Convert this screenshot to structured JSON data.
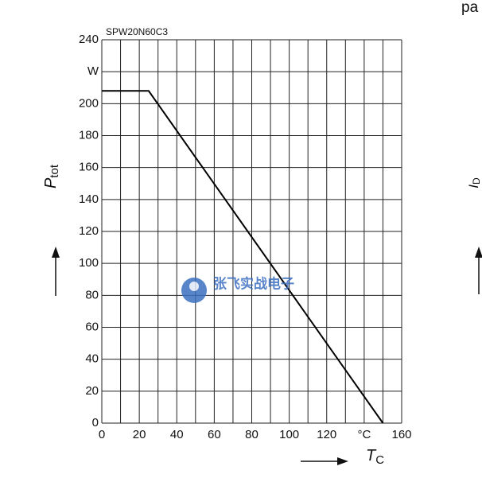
{
  "chart_data": {
    "type": "line",
    "title": "SPW20N60C3",
    "x_label": {
      "symbol": "T",
      "subscript": "C"
    },
    "y_label": {
      "symbol": "P",
      "subscript": "tot"
    },
    "x": [
      0,
      25,
      150
    ],
    "series": [
      {
        "color": "#000000",
        "values": [
          208,
          208,
          0
        ]
      }
    ],
    "xlim": [
      0,
      160
    ],
    "xticks": [
      0,
      20,
      40,
      60,
      80,
      100,
      120,
      {
        "value": 140,
        "label": "°C"
      },
      160
    ],
    "x_minor_ticks": [
      10,
      30,
      50,
      70,
      90,
      110,
      130,
      150
    ],
    "ylim": [
      0,
      240
    ],
    "yticks": [
      0,
      20,
      40,
      60,
      80,
      100,
      120,
      140,
      160,
      180,
      200,
      {
        "value": 220,
        "label": "W"
      },
      240
    ],
    "grid": true
  },
  "watermark": "张飞实战电子",
  "neighbor_chart": {
    "title_fragment": "pa",
    "y_label_symbol": "I",
    "y_label_subscript": "D"
  }
}
